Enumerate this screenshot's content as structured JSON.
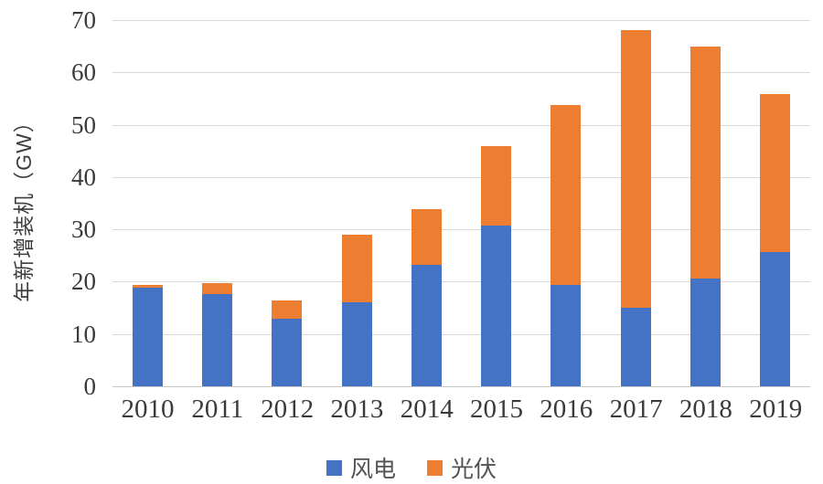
{
  "chart": {
    "y_axis_title": "年新增装机（GW）",
    "colors": {
      "wind": "#4472C4",
      "solar": "#ED7D31",
      "gridline": "#D9D9D9",
      "axis_text": "#3A3A3A"
    }
  },
  "chart_data": {
    "type": "bar",
    "stacked": true,
    "title": "",
    "xlabel": "",
    "ylabel": "年新增装机（GW）",
    "categories": [
      "2010",
      "2011",
      "2012",
      "2013",
      "2014",
      "2015",
      "2016",
      "2017",
      "2018",
      "2019"
    ],
    "series": [
      {
        "name": "风电",
        "color": "#4472C4",
        "values": [
          18.9,
          17.6,
          12.9,
          16.1,
          23.2,
          30.8,
          19.3,
          15.0,
          20.6,
          25.7
        ]
      },
      {
        "name": "光伏",
        "color": "#ED7D31",
        "values": [
          0.5,
          2.1,
          3.6,
          12.9,
          10.6,
          15.1,
          34.5,
          53.1,
          44.3,
          30.1
        ]
      }
    ],
    "ylim": [
      0,
      70
    ],
    "ytick_step": 10,
    "grid": true,
    "legend_position": "bottom"
  }
}
